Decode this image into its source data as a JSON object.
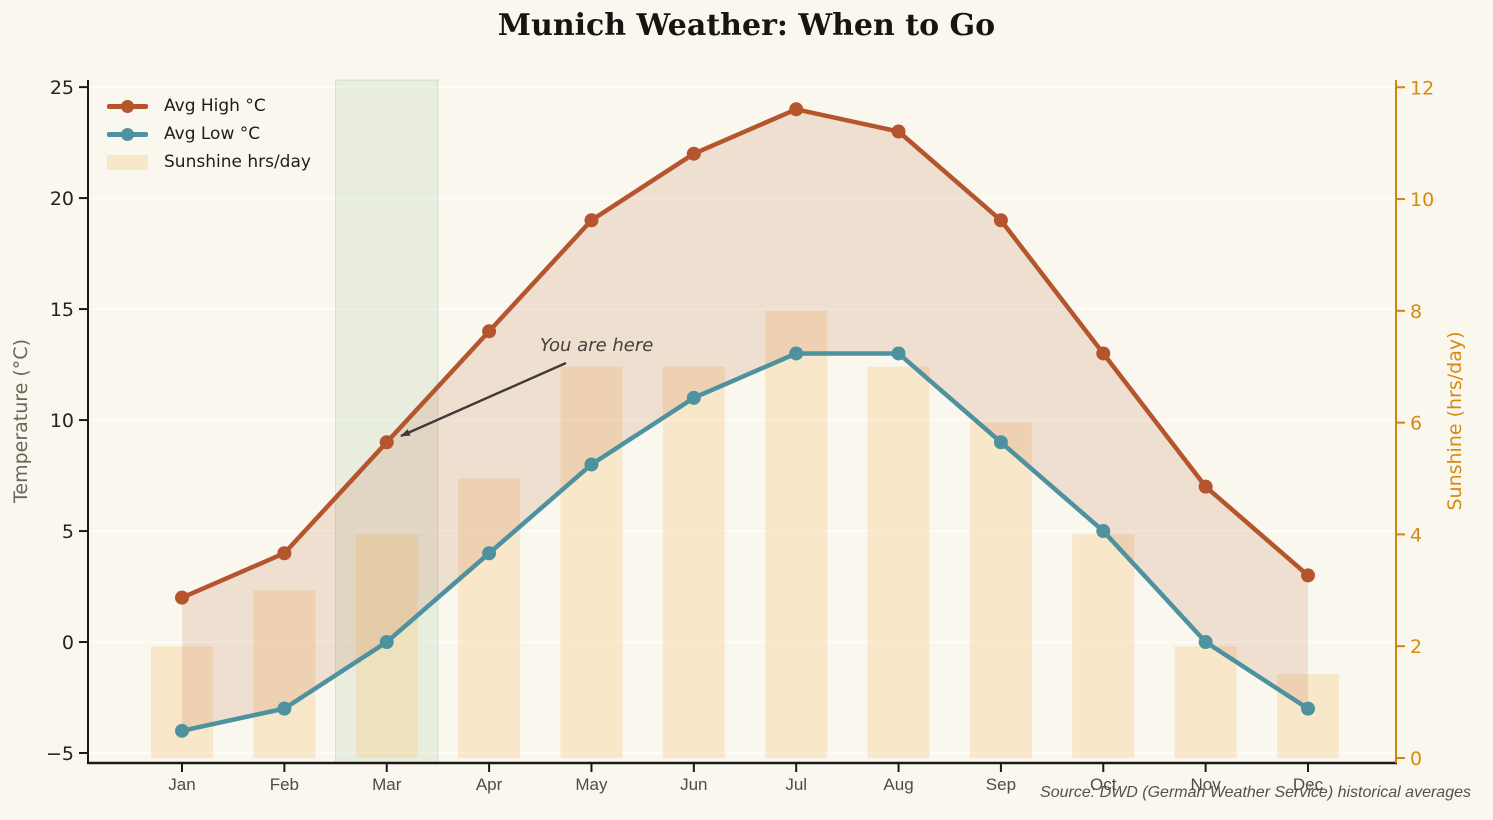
{
  "source_note": "Source: DWD (German Weather Service) historical averages",
  "chart_data": {
    "type": "line+bar",
    "title": "Munich Weather: When to Go",
    "categories": [
      "Jan",
      "Feb",
      "Mar",
      "Apr",
      "May",
      "Jun",
      "Jul",
      "Aug",
      "Sep",
      "Oct",
      "Nov",
      "Dec"
    ],
    "series": [
      {
        "name": "Avg High °C",
        "type": "line",
        "axis": "left",
        "color": "#b5552d",
        "values": [
          2,
          4,
          9,
          14,
          19,
          22,
          24,
          23,
          19,
          13,
          7,
          3
        ]
      },
      {
        "name": "Avg Low °C",
        "type": "line",
        "axis": "left",
        "color": "#4e92a0",
        "values": [
          -4,
          -3,
          0,
          4,
          8,
          11,
          13,
          13,
          9,
          5,
          0,
          -3
        ]
      },
      {
        "name": "Sunshine hrs/day",
        "type": "bar",
        "axis": "right",
        "color": "rgba(246,199,124,0.32)",
        "values": [
          2,
          3,
          4,
          5,
          7,
          7,
          8,
          7,
          6,
          4,
          2,
          1.5
        ]
      }
    ],
    "left_axis": {
      "label": "Temperature (°C)",
      "ticks": [
        -5,
        0,
        5,
        10,
        15,
        20,
        25
      ],
      "min": -5.45,
      "max": 25.32,
      "color": "#1a1a1a"
    },
    "right_axis": {
      "label": "Sunshine (hrs/day)",
      "ticks": [
        0,
        2,
        4,
        6,
        8,
        10,
        12
      ],
      "min": -0.09,
      "max": 12.13,
      "color": "#d28410"
    },
    "fill_between": {
      "between": [
        "Avg High °C",
        "Avg Low °C"
      ],
      "color": "rgba(181,85,45,0.15)"
    },
    "highlight_band": {
      "label": "March highlight",
      "from_index": 1.5,
      "to_index": 2.5,
      "color": "rgba(124,172,110,0.13)",
      "border_color": "rgba(110,160,100,0.22)"
    },
    "annotation": {
      "text": "You are here",
      "target_category": "Mar",
      "target_series": "Avg High °C",
      "target_value": 9,
      "arrow_color": "#3e3a37"
    },
    "legend_position": "upper left",
    "grid": "horizontal"
  }
}
